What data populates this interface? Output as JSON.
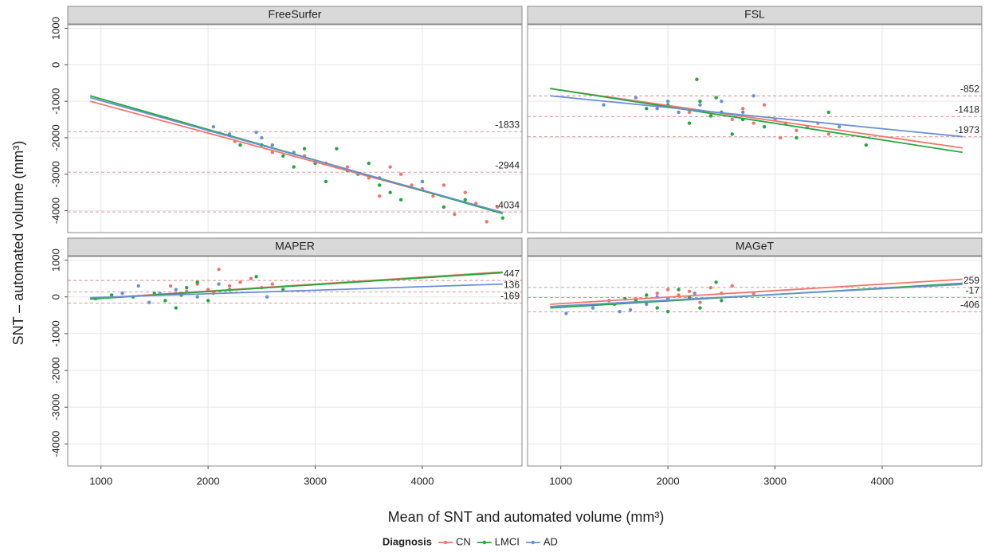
{
  "figure": {
    "x_label": "Mean of SNT and automated volume (mm³)",
    "y_label": "SNT – automated volume (mm³)",
    "legend_title": "Diagnosis",
    "legend": [
      {
        "name": "CN",
        "color": "#f0766d"
      },
      {
        "name": "LMCI",
        "color": "#22a83a"
      },
      {
        "name": "AD",
        "color": "#6b8fd6"
      }
    ]
  },
  "chart_data": [
    {
      "type": "scatter",
      "title": "FreeSurfer",
      "xlim": [
        690,
        4930
      ],
      "ylim": [
        -4600,
        1100
      ],
      "xticks": [
        1000,
        2000,
        3000,
        4000
      ],
      "yticks": [
        1000,
        0,
        -1000,
        -2000,
        -3000,
        -4000
      ],
      "grid": true,
      "hlines": [
        -1833,
        -2944,
        -4034
      ],
      "series": [
        {
          "x": [
            2250,
            2600,
            2900,
            3100,
            3300,
            3500,
            3700,
            3800,
            3900,
            4000,
            4100,
            4200,
            4300,
            4500,
            4600,
            4700,
            3600,
            4400
          ],
          "values": [
            -2100,
            -2400,
            -2500,
            -2700,
            -2800,
            -3100,
            -2800,
            -3000,
            -3300,
            -3400,
            -3600,
            -3300,
            -4100,
            -3800,
            -4300,
            -3900,
            -3600,
            -3500
          ],
          "fit_x": [
            900,
            4750
          ],
          "fit_y": [
            -1000,
            -4050
          ]
        },
        {
          "x": [
            2300,
            2500,
            2700,
            2900,
            3000,
            3100,
            3200,
            3300,
            3400,
            3500,
            3600,
            3700,
            3800,
            4000,
            4200,
            4400,
            4750,
            2800
          ],
          "values": [
            -2200,
            -2200,
            -2500,
            -2300,
            -2700,
            -3200,
            -2300,
            -2900,
            -3000,
            -2700,
            -3300,
            -3500,
            -3700,
            -3200,
            -3900,
            -3700,
            -4200,
            -2800
          ],
          "fit_x": [
            900,
            4750
          ],
          "fit_y": [
            -850,
            -4080
          ]
        },
        {
          "x": [
            2050,
            2200,
            2450,
            2500,
            2600,
            2800,
            3000,
            3200,
            3400,
            3600,
            4000
          ],
          "values": [
            -1700,
            -1900,
            -1850,
            -2000,
            -2200,
            -2400,
            -2650,
            -2800,
            -3000,
            -3100,
            -3200
          ],
          "fit_x": [
            900,
            4750
          ],
          "fit_y": [
            -900,
            -4050
          ]
        }
      ]
    },
    {
      "type": "scatter",
      "title": "FSL",
      "xlim": [
        690,
        4930
      ],
      "ylim": [
        -4600,
        1100
      ],
      "xticks": [
        1000,
        2000,
        3000,
        4000
      ],
      "yticks": [
        1000,
        0,
        -1000,
        -2000,
        -3000,
        -4000
      ],
      "grid": true,
      "hlines": [
        -852,
        -1418,
        -1973
      ],
      "series": [
        {
          "x": [
            2200,
            2400,
            2600,
            2800,
            2900,
            3000,
            3100,
            3200,
            3300,
            3400,
            3500,
            2700,
            3050
          ],
          "values": [
            -1300,
            -1400,
            -1500,
            -1600,
            -1100,
            -1500,
            -1600,
            -1800,
            -1700,
            -1600,
            -1900,
            -1200,
            -2000
          ],
          "fit_x": [
            900,
            4750
          ],
          "fit_y": [
            -650,
            -2280
          ]
        },
        {
          "x": [
            1800,
            2000,
            2100,
            2200,
            2300,
            2270,
            2400,
            2500,
            2600,
            2700,
            2900,
            3200,
            3500,
            3850,
            2450
          ],
          "values": [
            -1200,
            -1100,
            -1300,
            -1600,
            -1000,
            -400,
            -1400,
            -1300,
            -1900,
            -1500,
            -1700,
            -2000,
            -1300,
            -2200,
            -900
          ],
          "fit_x": [
            900,
            4750
          ],
          "fit_y": [
            -650,
            -2400
          ]
        },
        {
          "x": [
            1400,
            1700,
            1900,
            2000,
            2100,
            2300,
            2500,
            2700,
            2800,
            3600
          ],
          "values": [
            -1100,
            -900,
            -1200,
            -1000,
            -1300,
            -1100,
            -1000,
            -1300,
            -850,
            -1700
          ],
          "fit_x": [
            900,
            4750
          ],
          "fit_y": [
            -850,
            -1970
          ]
        }
      ]
    },
    {
      "type": "scatter",
      "title": "MAPER",
      "xlim": [
        690,
        4930
      ],
      "ylim": [
        -4600,
        1100
      ],
      "xticks": [
        1000,
        2000,
        3000,
        4000
      ],
      "yticks": [
        1000,
        0,
        -1000,
        -2000,
        -3000,
        -4000
      ],
      "grid": true,
      "hlines": [
        447,
        136,
        -169
      ],
      "series": [
        {
          "x": [
            1650,
            1800,
            2000,
            2100,
            2200,
            2300,
            2400,
            2500,
            2600,
            1900,
            2050
          ],
          "values": [
            300,
            150,
            200,
            750,
            300,
            400,
            500,
            250,
            350,
            350,
            100
          ],
          "fit_x": [
            900,
            4750
          ],
          "fit_y": [
            -50,
            680
          ]
        },
        {
          "x": [
            1100,
            1300,
            1500,
            1600,
            1700,
            1800,
            1900,
            2000,
            2200,
            2450,
            2700,
            1750
          ],
          "values": [
            50,
            0,
            100,
            -100,
            -300,
            250,
            400,
            -100,
            200,
            550,
            200,
            50
          ],
          "fit_x": [
            900,
            4750
          ],
          "fit_y": [
            -60,
            660
          ]
        },
        {
          "x": [
            950,
            1200,
            1350,
            1450,
            1550,
            1700,
            1900,
            2100,
            2550
          ],
          "values": [
            -50,
            100,
            300,
            -150,
            100,
            200,
            0,
            350,
            0
          ],
          "fit_x": [
            900,
            4750
          ],
          "fit_y": [
            -20,
            350
          ]
        }
      ]
    },
    {
      "type": "scatter",
      "title": "MAGeT",
      "xlim": [
        690,
        4930
      ],
      "ylim": [
        -4600,
        1100
      ],
      "xticks": [
        1000,
        2000,
        3000,
        4000
      ],
      "yticks": [
        1000,
        0,
        -1000,
        -2000,
        -3000,
        -4000
      ],
      "grid": true,
      "hlines": [
        259,
        -17,
        -406
      ],
      "series": [
        {
          "x": [
            1700,
            1900,
            2000,
            2100,
            2200,
            2300,
            2400,
            2500,
            2600,
            2200,
            2800
          ],
          "values": [
            -50,
            100,
            200,
            50,
            150,
            -150,
            250,
            100,
            300,
            -50,
            100
          ],
          "fit_x": [
            900,
            4750
          ],
          "fit_y": [
            -200,
            480
          ]
        },
        {
          "x": [
            1500,
            1700,
            1800,
            1900,
            2000,
            2100,
            2200,
            2300,
            2450,
            2500,
            1600
          ],
          "values": [
            -200,
            -100,
            50,
            -300,
            -400,
            200,
            0,
            -300,
            400,
            -100,
            -50
          ],
          "fit_x": [
            900,
            4750
          ],
          "fit_y": [
            -300,
            370
          ]
        },
        {
          "x": [
            1050,
            1300,
            1450,
            1550,
            1650,
            1800,
            1900,
            2000,
            2250
          ],
          "values": [
            -450,
            -300,
            -100,
            -400,
            -350,
            -200,
            0,
            -50,
            100
          ],
          "fit_x": [
            900,
            4750
          ],
          "fit_y": [
            -260,
            340
          ]
        }
      ]
    }
  ]
}
